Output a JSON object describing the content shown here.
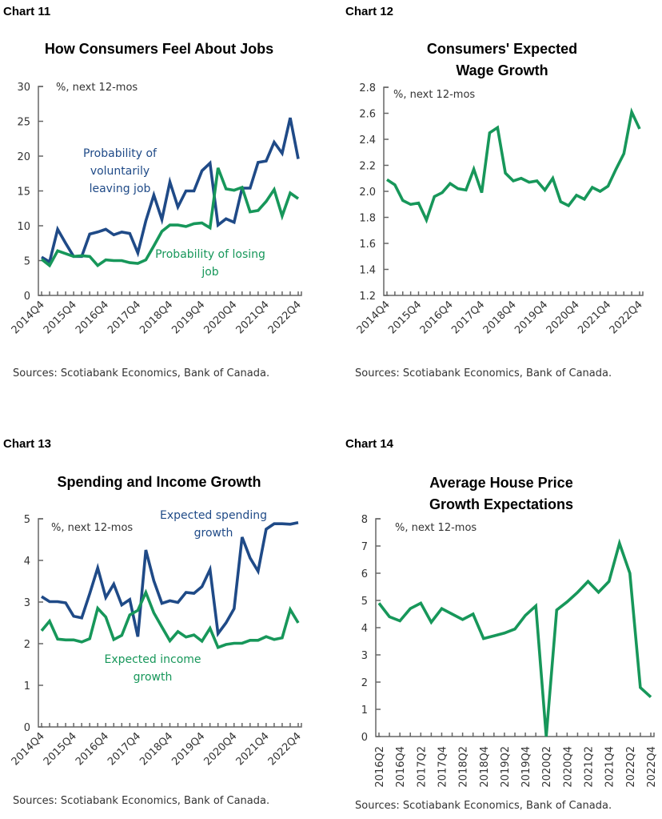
{
  "colors": {
    "navy": "#1f4a87",
    "green": "#17975a",
    "axis": "#666666"
  },
  "source_text": "Sources: Scotiabank Economics, Bank of Canada.",
  "chart_data": [
    {
      "id": "chart11",
      "panel_label": "Chart 11",
      "type": "line",
      "title": [
        "How Consumers Feel About Jobs"
      ],
      "unit_label": "%, next 12-mos",
      "ylim": [
        0,
        30
      ],
      "yticks": [
        0,
        5,
        10,
        15,
        20,
        25,
        30
      ],
      "x_start": "2014Q4",
      "x_labels": [
        "2014Q4",
        "2015Q4",
        "2016Q4",
        "2017Q4",
        "2018Q4",
        "2019Q4",
        "2020Q4",
        "2021Q4",
        "2022Q4"
      ],
      "x_label_rotation": "diagonal",
      "source": "Sources: Scotiabank Economics, Bank of Canada.",
      "series": [
        {
          "name": "Probability of voluntarily leaving job",
          "label_lines": [
            "Probability of",
            "voluntarily",
            "leaving job"
          ],
          "color": "#1f4a87",
          "values": [
            5.5,
            4.8,
            9.5,
            7.5,
            5.6,
            5.6,
            8.8,
            9.1,
            9.5,
            8.7,
            9.1,
            8.9,
            6.1,
            10.7,
            14.4,
            10.9,
            16.3,
            12.7,
            15.0,
            15.0,
            17.9,
            19.0,
            10.1,
            11.0,
            10.5,
            15.4,
            15.4,
            19.1,
            19.3,
            22.0,
            20.4,
            25.5,
            19.6
          ]
        },
        {
          "name": "Probability of losing job",
          "label_lines": [
            "Probability of losing",
            "job"
          ],
          "color": "#17975a",
          "values": [
            5.2,
            4.3,
            6.4,
            6.0,
            5.6,
            5.7,
            5.6,
            4.3,
            5.1,
            5.0,
            5.0,
            4.7,
            4.6,
            5.1,
            7.1,
            9.2,
            10.1,
            10.1,
            9.9,
            10.3,
            10.4,
            9.7,
            18.3,
            15.3,
            15.1,
            15.5,
            12.0,
            12.2,
            13.5,
            15.2,
            11.4,
            14.7,
            13.9
          ]
        }
      ]
    },
    {
      "id": "chart12",
      "panel_label": "Chart 12",
      "type": "line",
      "title": [
        "Consumers' Expected",
        "Wage Growth"
      ],
      "unit_label": "%, next 12-mos",
      "ylim": [
        1.2,
        2.8
      ],
      "yticks": [
        "1.2",
        "1.4",
        "1.6",
        "1.8",
        "2.0",
        "2.2",
        "2.4",
        "2.6",
        "2.8"
      ],
      "x_start": "2014Q4",
      "x_labels": [
        "2014Q4",
        "2015Q4",
        "2016Q4",
        "2017Q4",
        "2018Q4",
        "2019Q4",
        "2020Q4",
        "2021Q4",
        "2022Q4"
      ],
      "x_label_rotation": "diagonal",
      "source": "Sources: Scotiabank Economics, Bank of Canada.",
      "series": [
        {
          "name": "Expected wage growth",
          "color": "#17975a",
          "values": [
            2.09,
            2.05,
            1.93,
            1.9,
            1.91,
            1.78,
            1.96,
            1.99,
            2.06,
            2.02,
            2.01,
            2.17,
            1.99,
            2.45,
            2.49,
            2.14,
            2.08,
            2.1,
            2.07,
            2.08,
            2.01,
            2.1,
            1.92,
            1.89,
            1.97,
            1.94,
            2.03,
            2.0,
            2.04,
            2.17,
            2.29,
            2.61,
            2.48
          ]
        }
      ]
    },
    {
      "id": "chart13",
      "panel_label": "Chart 13",
      "type": "line",
      "title": [
        "Spending and Income Growth"
      ],
      "unit_label": "%, next 12-mos",
      "ylim": [
        0,
        5
      ],
      "yticks": [
        0,
        1,
        2,
        3,
        4,
        5
      ],
      "x_start": "2014Q4",
      "x_labels": [
        "2014Q4",
        "2015Q4",
        "2016Q4",
        "2017Q4",
        "2018Q4",
        "2019Q4",
        "2020Q4",
        "2021Q4",
        "2022Q4"
      ],
      "x_label_rotation": "diagonal",
      "source": "Sources: Scotiabank Economics, Bank of Canada.",
      "series": [
        {
          "name": "Expected spending growth",
          "label_lines": [
            "Expected spending",
            "growth"
          ],
          "color": "#1f4a87",
          "values": [
            3.13,
            3.01,
            3.01,
            2.98,
            2.66,
            2.62,
            3.2,
            3.82,
            3.11,
            3.43,
            2.93,
            3.06,
            2.17,
            4.25,
            3.51,
            2.97,
            3.03,
            2.99,
            3.23,
            3.21,
            3.37,
            3.78,
            2.24,
            2.5,
            2.84,
            4.56,
            4.06,
            3.74,
            4.75,
            4.88,
            4.88,
            4.87,
            4.91
          ]
        },
        {
          "name": "Expected income growth",
          "label_lines": [
            "Expected income",
            "growth"
          ],
          "color": "#17975a",
          "values": [
            2.31,
            2.54,
            2.11,
            2.09,
            2.09,
            2.04,
            2.12,
            2.85,
            2.64,
            2.1,
            2.2,
            2.69,
            2.8,
            3.23,
            2.74,
            2.4,
            2.07,
            2.29,
            2.16,
            2.21,
            2.06,
            2.37,
            1.91,
            1.98,
            2.01,
            2.01,
            2.08,
            2.08,
            2.17,
            2.1,
            2.14,
            2.82,
            2.5
          ]
        }
      ]
    },
    {
      "id": "chart14",
      "panel_label": "Chart 14",
      "type": "line",
      "title": [
        "Average House Price",
        "Growth Expectations"
      ],
      "unit_label": "%, next 12-mos",
      "ylim": [
        0,
        8
      ],
      "yticks": [
        0,
        1,
        2,
        3,
        4,
        5,
        6,
        7,
        8
      ],
      "x_start": "2016Q2",
      "x_labels": [
        "2016Q2",
        "2016Q4",
        "2017Q2",
        "2017Q4",
        "2018Q2",
        "2018Q4",
        "2019Q2",
        "2019Q4",
        "2020Q2",
        "2020Q4",
        "2021Q2",
        "2021Q4",
        "2022Q2",
        "2022Q4"
      ],
      "x_label_rotation": "vertical",
      "source": "Sources: Scotiabank Economics, Bank of Canada.",
      "series": [
        {
          "name": "Average house price growth expectations",
          "color": "#17975a",
          "values": [
            4.9,
            4.4,
            4.25,
            4.7,
            4.9,
            4.2,
            4.7,
            4.5,
            4.3,
            4.5,
            3.6,
            3.7,
            3.8,
            3.95,
            4.45,
            4.8,
            0.0,
            4.65,
            4.95,
            5.3,
            5.7,
            5.3,
            5.7,
            7.1,
            6.0,
            1.8,
            1.45
          ]
        }
      ]
    }
  ]
}
